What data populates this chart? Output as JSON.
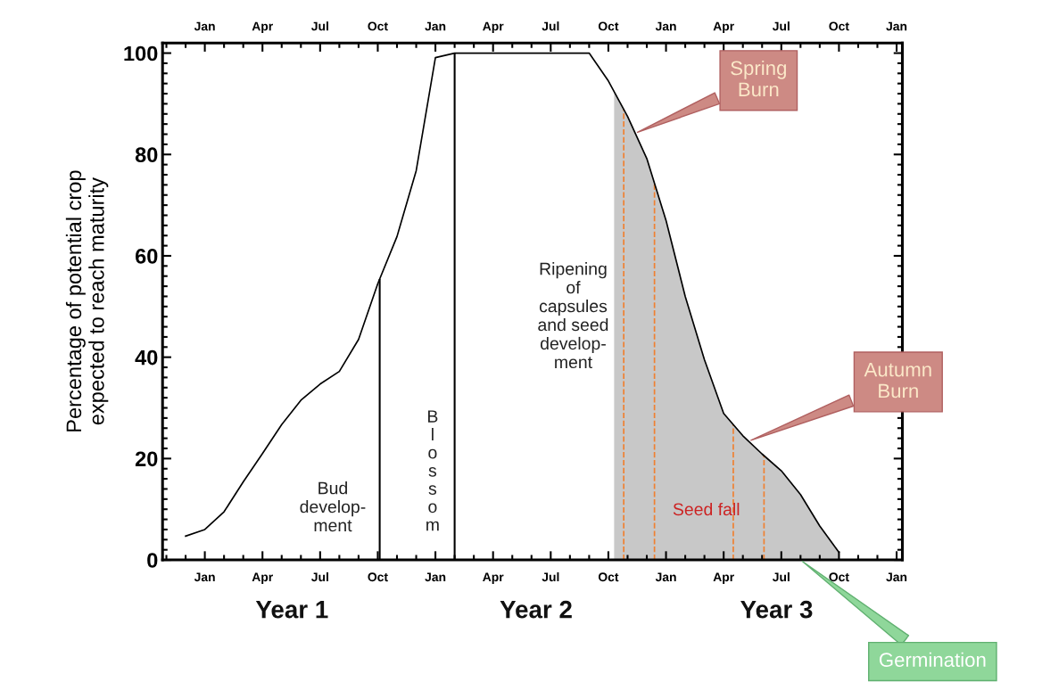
{
  "chart_data": {
    "type": "line",
    "ylabel": "Percentage of potential crop\nexpected to reach maturity",
    "categories": [
      null,
      null,
      "Jan",
      null,
      null,
      "Apr",
      null,
      null,
      "Jul",
      null,
      null,
      "Oct",
      null,
      null,
      "Jan",
      null,
      null,
      "Apr",
      null,
      null,
      "Jul",
      null,
      null,
      "Oct",
      null,
      null,
      "Jan",
      null,
      null,
      "Apr",
      null,
      null,
      "Jul",
      null,
      null,
      "Oct",
      null,
      null,
      "Jan"
    ],
    "series": [
      {
        "color": "#000000",
        "values": [
          null,
          4.7,
          6.0,
          9.5,
          15.4,
          21,
          26.7,
          31.5,
          34.7,
          37.2,
          43.5,
          54.5,
          63.8,
          76.8,
          99.1,
          100,
          100,
          100,
          100,
          100,
          100,
          100,
          100,
          94.5,
          87.5,
          79.2,
          67,
          52,
          39.5,
          28.9,
          24.5,
          20.9,
          17.6,
          12.9,
          6.7,
          1.5,
          null,
          null,
          null
        ]
      }
    ],
    "ylim": [
      0,
      102
    ],
    "yticks": [
      0,
      20,
      40,
      60,
      80,
      100
    ],
    "annotations": [
      "Bud\ndevelop-\nment",
      "B\nl\no\ns\ns\no\nm",
      "Ripening\nof\ncapsules\nand seed\ndevelop-\nment",
      "Seed fall",
      "Spring\nBurn",
      "Autumn\nBurn",
      "Germination",
      "Year 1",
      "Year 2",
      "Year 3"
    ],
    "grid": false
  }
}
